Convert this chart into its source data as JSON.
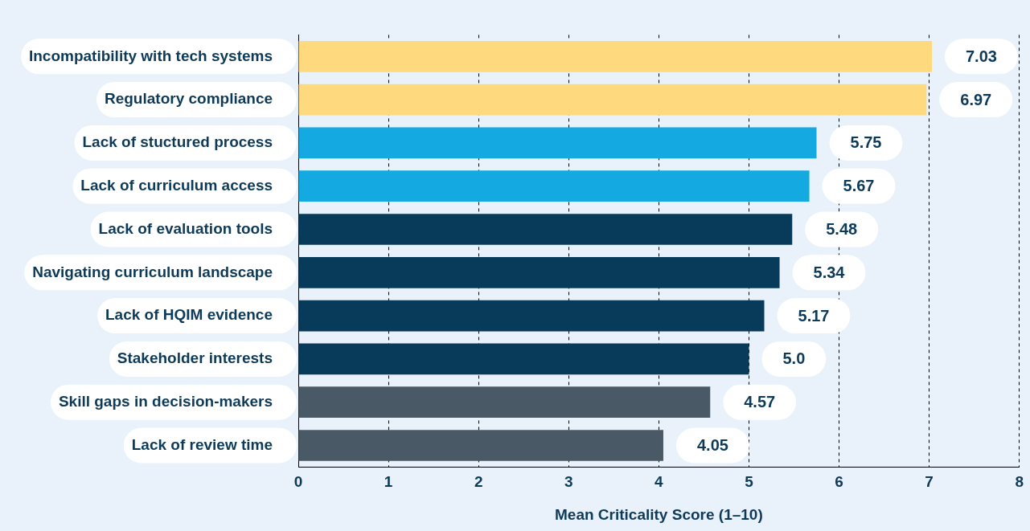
{
  "chart_data": {
    "type": "bar",
    "orientation": "horizontal",
    "xlabel": "Mean Criticality Score (1–10)",
    "categories": [
      "Incompatibility with tech systems",
      "Regulatory compliance",
      "Lack of stuctured process",
      "Lack of curriculum access",
      "Lack of evaluation tools",
      "Navigating curriculum landscape",
      "Lack of HQIM evidence",
      "Stakeholder interests",
      "Skill gaps in decision-makers",
      "Lack of review time"
    ],
    "values": [
      7.03,
      6.97,
      5.75,
      5.67,
      5.48,
      5.34,
      5.17,
      5.0,
      4.57,
      4.05
    ],
    "value_labels": [
      "7.03",
      "6.97",
      "5.75",
      "5.67",
      "5.48",
      "5.34",
      "5.17",
      "5.0",
      "4.57",
      "4.05"
    ],
    "colors": [
      "#ffd97d",
      "#ffd97d",
      "#14a9e1",
      "#14a9e1",
      "#083b59",
      "#083b59",
      "#083b59",
      "#083b59",
      "#4a5966",
      "#4a5966"
    ],
    "xlim": [
      0,
      8
    ],
    "xticks": [
      0,
      1,
      2,
      3,
      4,
      5,
      6,
      7,
      8
    ],
    "grid": "x",
    "legend": false
  }
}
